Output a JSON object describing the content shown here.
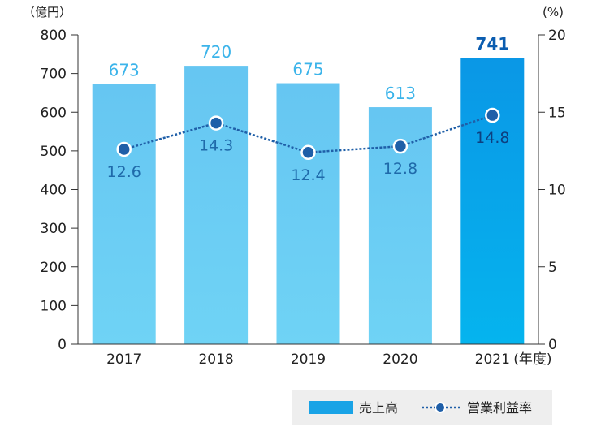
{
  "chart_data": {
    "type": "bar",
    "categories": [
      "2017",
      "2018",
      "2019",
      "2020",
      "2021"
    ],
    "x_unit": "(年度)",
    "series": [
      {
        "name": "売上高",
        "type": "bar",
        "axis": "left",
        "values": [
          673,
          720,
          675,
          613,
          741
        ],
        "labels": [
          "673",
          "720",
          "675",
          "613",
          "741"
        ]
      },
      {
        "name": "営業利益率",
        "type": "line",
        "axis": "right",
        "values": [
          12.6,
          14.3,
          12.4,
          12.8,
          14.8
        ],
        "labels": [
          "12.6",
          "14.3",
          "12.4",
          "12.8",
          "14.8"
        ]
      }
    ],
    "y_left": {
      "unit": "（億円）",
      "min": 0,
      "max": 800,
      "ticks": [
        "0",
        "100",
        "200",
        "300",
        "400",
        "500",
        "600",
        "700",
        "800"
      ]
    },
    "y_right": {
      "unit": "(%)",
      "min": 0,
      "max": 20,
      "ticks": [
        "0",
        "5",
        "10",
        "15",
        "20"
      ]
    },
    "highlight_index": 4,
    "legend": {
      "position": "bottom-right"
    },
    "colors": {
      "bar_top": "#66c6f2",
      "bar_bottom": "#6fd3f5",
      "bar_highlight_top": "#0a97e6",
      "bar_highlight_bottom": "#05b4ee",
      "bar_label": "#3cb4ea",
      "bar_label_highlight": "#0b5db0",
      "line": "#1f5fa8",
      "line_label": "#1f6aaa",
      "line_label_highlight": "#0d3f7f",
      "legend_bar": "#19a3e6",
      "legend_line": "#1f5fa8",
      "legend_bg": "#eeeeee",
      "axis": "#333333"
    }
  }
}
